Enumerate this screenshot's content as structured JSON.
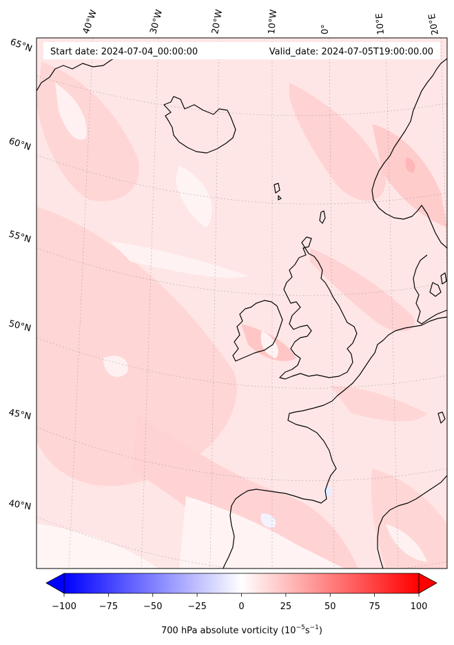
{
  "header": {
    "start_label": "Start date: 2024-07-04_00:00:00",
    "valid_label": "Valid_date: 2024-07-05T19:00:00.00"
  },
  "longitude_labels": [
    "40°W",
    "30°W",
    "20°W",
    "10°W",
    "0°",
    "10°E",
    "20°E"
  ],
  "latitude_labels": [
    "65°N",
    "60°N",
    "55°N",
    "50°N",
    "45°N",
    "40°N"
  ],
  "colorbar": {
    "min": -100,
    "max": 100,
    "ticks": [
      "−100",
      "−75",
      "−50",
      "−25",
      "0",
      "25",
      "50",
      "75",
      "100"
    ],
    "low_color": "#0000ff",
    "mid_color": "#ffffff",
    "high_color": "#ff0000",
    "label_prefix": "700 hPa absolute vorticity (10",
    "label_exp1": "−5",
    "label_mid": "s",
    "label_exp2": "−1",
    "label_suffix": ")"
  },
  "colors": {
    "field_base": "#ffe6e6",
    "field_medium": "#ffd3d3",
    "field_light": "#fff3f3",
    "field_strong": "#ffb6b6",
    "field_blue": "#e8edff"
  }
}
